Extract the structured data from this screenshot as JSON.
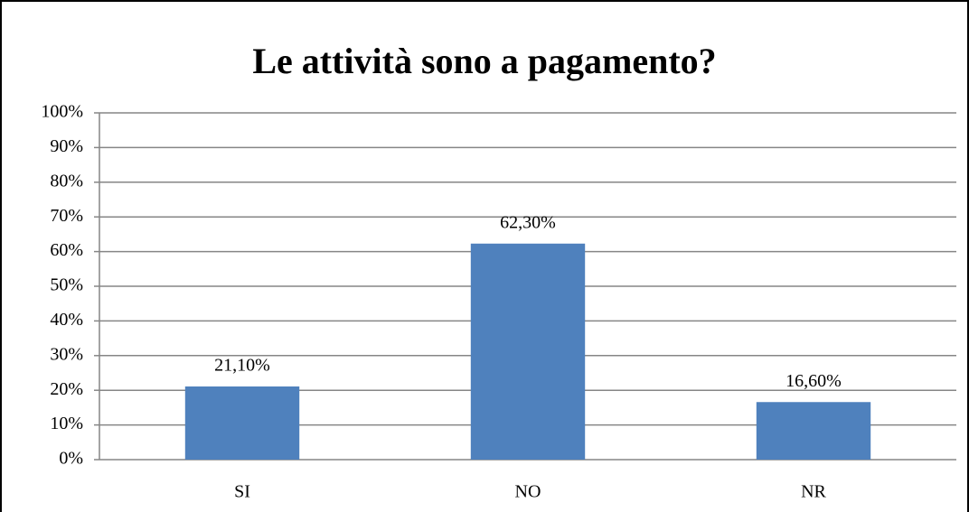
{
  "chart_data": {
    "type": "bar",
    "title": "Le attività sono a pagamento?",
    "categories": [
      "SI",
      "NO",
      "NR"
    ],
    "values": [
      21.1,
      62.3,
      16.6
    ],
    "value_labels": [
      "21,10%",
      "62,30%",
      "16,60%"
    ],
    "color": "#4f81bd",
    "ylim": [
      0,
      100
    ],
    "yticks": [
      {
        "value": 0,
        "label": "0%"
      },
      {
        "value": 10,
        "label": "10%"
      },
      {
        "value": 20,
        "label": "20%"
      },
      {
        "value": 30,
        "label": "30%"
      },
      {
        "value": 40,
        "label": "40%"
      },
      {
        "value": 50,
        "label": "50%"
      },
      {
        "value": 60,
        "label": "60%"
      },
      {
        "value": 70,
        "label": "70%"
      },
      {
        "value": 80,
        "label": "80%"
      },
      {
        "value": 90,
        "label": "90%"
      },
      {
        "value": 100,
        "label": "100%"
      }
    ],
    "grid": true
  }
}
